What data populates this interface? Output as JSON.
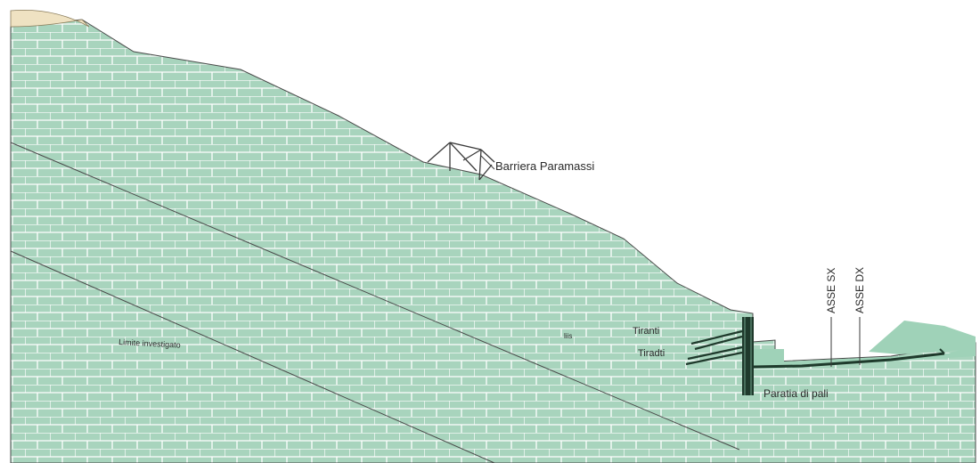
{
  "diagram": {
    "labels": {
      "barrier": "Barriera Paramassi",
      "limit": "Limite investigato",
      "tiebacks": "Tiranti",
      "braces": "Tiradti",
      "pile_wall": "Paratia di pali",
      "axis_left": "ASSE SX",
      "axis_right": "ASSE DX",
      "small_mark": "liis"
    },
    "colors": {
      "rock_fill": "#a8d4bd",
      "brick_lines": "#ffffff",
      "outline": "#4a4a4a",
      "sand_fill": "#efe2c2",
      "structure": "#1f3a2c",
      "right_fill": "#9fd2b8"
    }
  }
}
